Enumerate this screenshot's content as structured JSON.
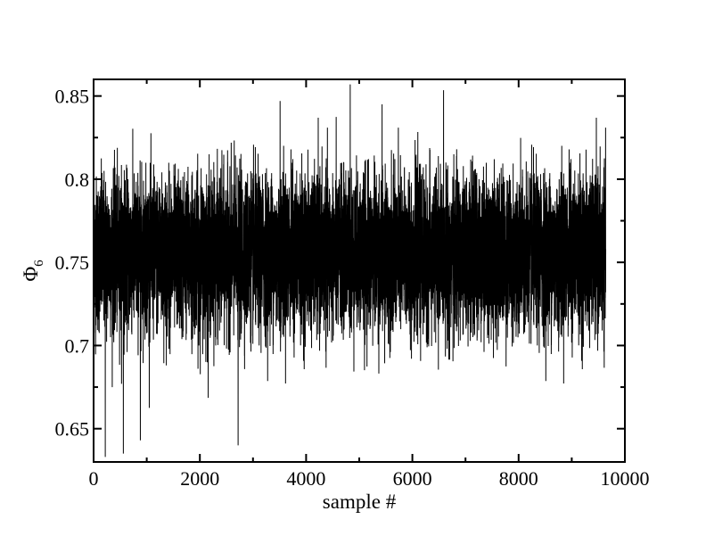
{
  "chart_data": {
    "type": "line",
    "title": "",
    "xlabel": "sample #",
    "ylabel": {
      "main": "Φ",
      "subscript": "6"
    },
    "xlim": [
      0,
      10000
    ],
    "ylim": [
      0.63,
      0.86
    ],
    "x_ticks": [
      0,
      2000,
      4000,
      6000,
      8000,
      10000
    ],
    "x_tick_labels": [
      "0",
      "2000",
      "4000",
      "6000",
      "8000",
      "10000"
    ],
    "y_ticks": [
      0.65,
      0.7,
      0.75,
      0.8,
      0.85
    ],
    "y_tick_labels": [
      "0.65",
      "0.7",
      "0.75",
      "0.8",
      "0.85"
    ],
    "grid": false,
    "legend": "none",
    "series": [
      {
        "color": "#000000",
        "sample_count": 9640,
        "x_range": [
          0,
          9640
        ],
        "mean": 0.755,
        "std_dev": 0.023,
        "typical_band": [
          0.69,
          0.815
        ],
        "observed_min": 0.633,
        "observed_max": 0.857,
        "notable_points": [
          {
            "x": 220,
            "y": 0.633
          },
          {
            "x": 560,
            "y": 0.635
          },
          {
            "x": 880,
            "y": 0.643
          },
          {
            "x": 2720,
            "y": 0.64
          },
          {
            "x": 4830,
            "y": 0.857
          },
          {
            "x": 3510,
            "y": 0.847
          },
          {
            "x": 5430,
            "y": 0.845
          },
          {
            "x": 9620,
            "y": 0.747
          }
        ]
      }
    ]
  }
}
